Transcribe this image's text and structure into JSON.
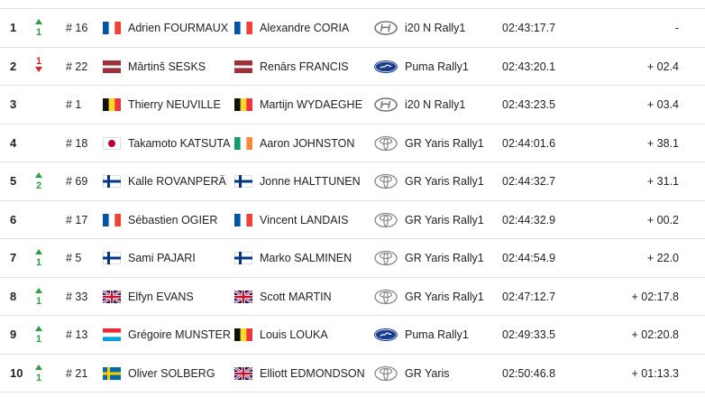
{
  "rows": [
    {
      "position": "1",
      "change": "1",
      "number": "# 16",
      "driver": "Adrien FOURMAUX",
      "codriver": "Alexandre CORIA",
      "car": "i20 N Rally1",
      "time": "02:43:17.7",
      "gap": "-"
    },
    {
      "position": "2",
      "change": "1",
      "number": "# 22",
      "driver": "Mārtinš SESKS",
      "codriver": "Renārs FRANCIS",
      "car": "Puma Rally1",
      "time": "02:43:20.1",
      "gap": "+ 02.4"
    },
    {
      "position": "3",
      "number": "# 1",
      "driver": "Thierry NEUVILLE",
      "codriver": "Martijn WYDAEGHE",
      "car": "i20 N Rally1",
      "time": "02:43:23.5",
      "gap": "+ 03.4"
    },
    {
      "position": "4",
      "number": "# 18",
      "driver": "Takamoto KATSUTA",
      "codriver": "Aaron JOHNSTON",
      "car": "GR Yaris Rally1",
      "time": "02:44:01.6",
      "gap": "+ 38.1"
    },
    {
      "position": "5",
      "change": "2",
      "number": "# 69",
      "driver": "Kalle ROVANPERÄ",
      "codriver": "Jonne HALTTUNEN",
      "car": "GR Yaris Rally1",
      "time": "02:44:32.7",
      "gap": "+ 31.1"
    },
    {
      "position": "6",
      "number": "# 17",
      "driver": "Sébastien OGIER",
      "codriver": "Vincent LANDAIS",
      "car": "GR Yaris Rally1",
      "time": "02:44:32.9",
      "gap": "+ 00.2"
    },
    {
      "position": "7",
      "change": "1",
      "number": "# 5",
      "driver": "Sami PAJARI",
      "codriver": "Marko SALMINEN",
      "car": "GR Yaris Rally1",
      "time": "02:44:54.9",
      "gap": "+ 22.0"
    },
    {
      "position": "8",
      "change": "1",
      "number": "# 33",
      "driver": "Elfyn EVANS",
      "codriver": "Scott MARTIN",
      "car": "GR Yaris Rally1",
      "time": "02:47:12.7",
      "gap": "+ 02:17.8"
    },
    {
      "position": "9",
      "change": "1",
      "number": "# 13",
      "driver": "Grégoire MUNSTER",
      "codriver": "Louis LOUKA",
      "car": "Puma Rally1",
      "time": "02:49:33.5",
      "gap": "+ 02:20.8"
    },
    {
      "position": "10",
      "change": "1",
      "number": "# 21",
      "driver": "Oliver SOLBERG",
      "codriver": "Elliott EDMONDSON",
      "car": "GR Yaris",
      "time": "02:50:46.8",
      "gap": "+ 01:13.3"
    }
  ]
}
